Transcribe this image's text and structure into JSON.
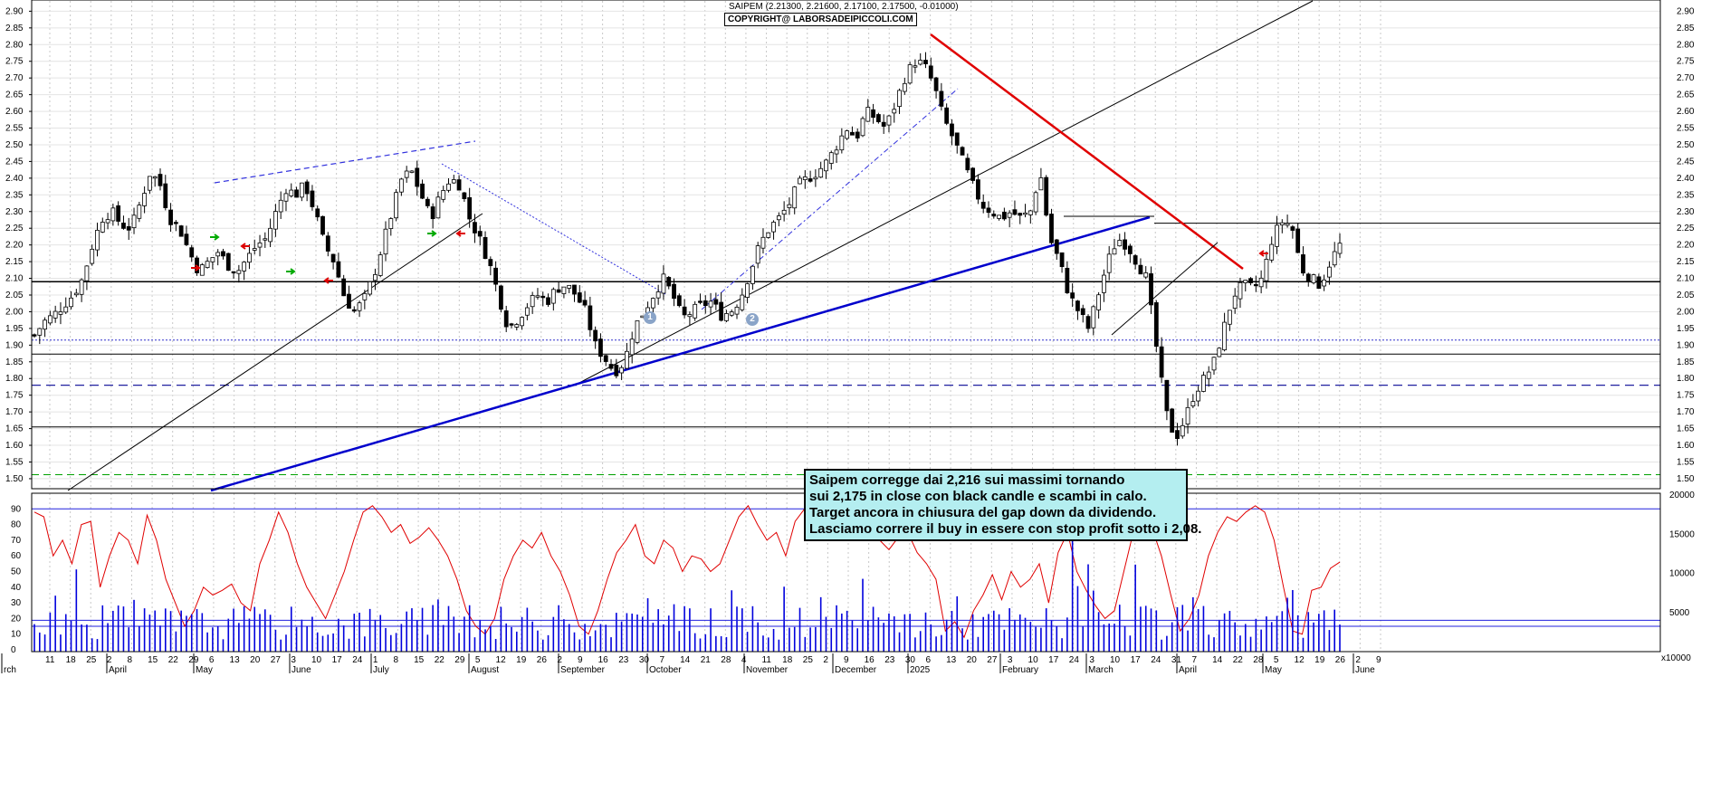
{
  "header": {
    "title": "SAIPEM (2.21300, 2.21600, 2.17100, 2.17500, -0.01000)",
    "copyright": "COPYRIGHT@ LABORSADEIPICCOLI.COM"
  },
  "annotation": {
    "lines": [
      "Saipem corregge dai 2,216 sui massimi tornando",
      "sui 2,175 in close con black candle e scambi in calo.",
      "Target ancora in chiusura del gap down da dividendo.",
      "Lasciamo correre il buy in essere con stop profit sotto i 2,08."
    ]
  },
  "markers": [
    "1",
    "2"
  ],
  "colors": {
    "candle": "#000000",
    "trend_red": "#e00000",
    "trend_blue": "#0000cc",
    "dotted_blue": "#2020cc",
    "dashed_green": "#00a000",
    "oscillator": "#e00000",
    "volume": "#0000dd",
    "arrow_green": "#00aa00",
    "arrow_red": "#dd0000"
  },
  "chart_data": [
    {
      "type": "candlestick",
      "y_ticks": [
        "2.90",
        "2.85",
        "2.80",
        "2.75",
        "2.70",
        "2.65",
        "2.60",
        "2.55",
        "2.50",
        "2.45",
        "2.40",
        "2.35",
        "2.30",
        "2.25",
        "2.20",
        "2.15",
        "2.10",
        "2.05",
        "2.00",
        "1.95",
        "1.90",
        "1.85",
        "1.80",
        "1.75",
        "1.70",
        "1.65",
        "1.60",
        "1.55",
        "1.50"
      ],
      "ylim": [
        1.47,
        2.92
      ],
      "x_day_labels": [
        "11",
        "18",
        "25",
        "2",
        "8",
        "15",
        "22",
        "29",
        "6",
        "13",
        "20",
        "27",
        "3",
        "10",
        "17",
        "24",
        "1",
        "8",
        "15",
        "22",
        "29",
        "5",
        "12",
        "19",
        "26",
        "2",
        "9",
        "16",
        "23",
        "30",
        "7",
        "14",
        "21",
        "28",
        "4",
        "11",
        "18",
        "25",
        "2",
        "9",
        "16",
        "23",
        "30",
        "6",
        "13",
        "20",
        "27",
        "3",
        "10",
        "17",
        "24",
        "3",
        "10",
        "17",
        "24",
        "31",
        "7",
        "14",
        "22",
        "28",
        "5",
        "12",
        "19",
        "26",
        "2",
        "9"
      ],
      "x_month_labels": [
        "rch",
        "April",
        "May",
        "June",
        "July",
        "August",
        "September",
        "October",
        "November",
        "December",
        "2025",
        "February",
        "March",
        "April",
        "May",
        "June"
      ],
      "close_path": [
        1.93,
        1.97,
        1.99,
        2.02,
        2.05,
        2.1,
        2.2,
        2.28,
        2.3,
        2.26,
        2.25,
        2.33,
        2.42,
        2.38,
        2.28,
        2.25,
        2.18,
        2.12,
        2.15,
        2.18,
        2.14,
        2.12,
        2.16,
        2.2,
        2.22,
        2.3,
        2.37,
        2.35,
        2.38,
        2.3,
        2.2,
        2.15,
        2.05,
        2.0,
        2.03,
        2.1,
        2.2,
        2.3,
        2.4,
        2.42,
        2.35,
        2.28,
        2.35,
        2.4,
        2.38,
        2.28,
        2.22,
        2.15,
        2.05,
        1.95,
        1.98,
        2.02,
        2.05,
        2.03,
        2.07,
        2.08,
        2.05,
        2.0,
        1.9,
        1.86,
        1.82,
        1.85,
        1.95,
        2.0,
        2.05,
        2.1,
        2.05,
        1.98,
        2.0,
        2.02,
        2.03,
        1.99,
        2.0,
        2.04,
        2.12,
        2.2,
        2.25,
        2.28,
        2.32,
        2.38,
        2.4,
        2.42,
        2.45,
        2.5,
        2.55,
        2.52,
        2.6,
        2.58,
        2.55,
        2.62,
        2.7,
        2.75,
        2.74,
        2.68,
        2.58,
        2.52,
        2.45,
        2.38,
        2.32,
        2.3,
        2.28,
        2.3,
        2.28,
        2.3,
        2.42,
        2.22,
        2.15,
        2.05,
        2.0,
        1.95,
        2.05,
        2.15,
        2.22,
        2.2,
        2.15,
        2.1,
        1.9,
        1.7,
        1.62,
        1.68,
        1.76,
        1.8,
        1.85,
        1.95,
        2.05,
        2.08,
        2.07,
        2.1,
        2.22,
        2.27,
        2.26,
        2.13,
        2.1,
        2.08,
        2.15,
        2.2
      ],
      "oscillator_ylim": [
        0,
        100
      ],
      "oscillator_ticks": [
        "90",
        "80",
        "70",
        "60",
        "50",
        "40",
        "30",
        "20",
        "10",
        "0"
      ],
      "oscillator_levels": [
        90,
        15
      ],
      "oscillator_path": [
        88,
        85,
        60,
        70,
        55,
        80,
        82,
        40,
        60,
        75,
        70,
        55,
        86,
        70,
        45,
        30,
        15,
        25,
        40,
        35,
        38,
        42,
        30,
        25,
        55,
        70,
        88,
        75,
        55,
        40,
        30,
        20,
        35,
        50,
        70,
        88,
        92,
        85,
        75,
        80,
        68,
        72,
        78,
        70,
        60,
        45,
        25,
        15,
        10,
        20,
        45,
        60,
        70,
        65,
        75,
        60,
        50,
        35,
        15,
        10,
        25,
        45,
        62,
        70,
        80,
        60,
        55,
        70,
        65,
        50,
        60,
        58,
        50,
        55,
        70,
        85,
        92,
        80,
        70,
        75,
        60,
        82,
        90,
        78,
        72,
        76,
        80,
        70,
        86,
        80,
        70,
        64,
        72,
        75,
        62,
        55,
        45,
        12,
        18,
        8,
        25,
        35,
        48,
        32,
        50,
        40,
        45,
        55,
        30,
        62,
        75,
        50,
        38,
        28,
        20,
        25,
        50,
        75,
        85,
        78,
        60,
        35,
        12,
        20,
        35,
        60,
        75,
        85,
        82,
        88,
        92,
        88,
        70,
        40,
        12,
        10,
        38,
        40,
        52,
        56
      ],
      "volume_ylim": [
        0,
        20000
      ],
      "volume_ticks": [
        "20000",
        "15000",
        "10000",
        "5000"
      ],
      "volume_level": 4000,
      "volume_footnote": "x10000"
    }
  ]
}
